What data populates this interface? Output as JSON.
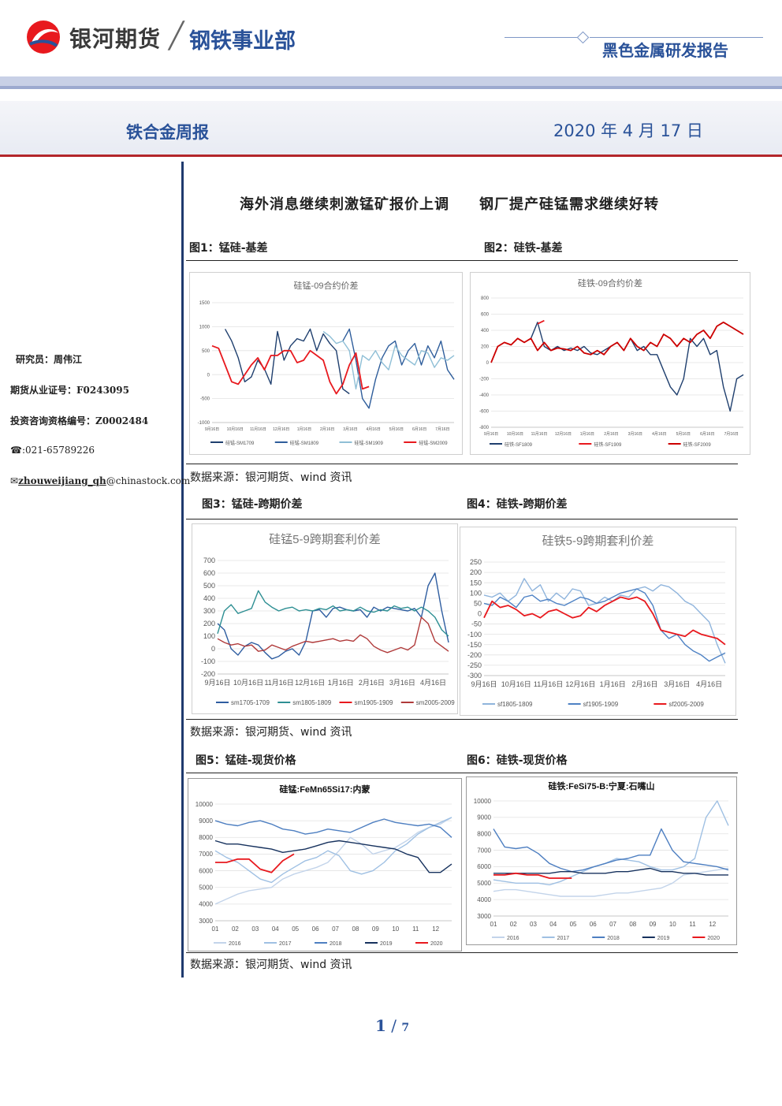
{
  "header": {
    "company": "银河期货",
    "division": "钢铁事业部",
    "report_type": "黑色金属研发报告"
  },
  "title_row": {
    "report_name": "铁合金周报",
    "date": "2020 年 4 月 17 日"
  },
  "sidebar": {
    "researcher": "研究员：周伟江",
    "futures_cert": "期货从业证号：F0243095",
    "advisory_cert": "投资咨询资格编号：Z0002484",
    "phone": "☎:021-65789226",
    "email_prefix": "zhouweijiang_qh",
    "email_domain": "@chinastock.com"
  },
  "headline": "海外消息继续刺激锰矿报价上调　　钢厂提产硅锰需求继续好转",
  "figures": {
    "fig1_label": "图1：锰硅-基差",
    "fig2_label": "图2：硅铁-基差",
    "fig3_label": "图3：锰硅-跨期价差",
    "fig4_label": "图4：硅铁-跨期价差",
    "fig5_label": "图5：锰硅-现货价格",
    "fig6_label": "图6：硅铁-现货价格"
  },
  "source_note": "数据来源：银河期货、wind 资讯",
  "footer": {
    "page": "1",
    "total": "7"
  },
  "chart_data": [
    {
      "type": "line",
      "title": "硅锰-09合约价差",
      "x_ticks": [
        "9月16日",
        "10月16日",
        "11月16日",
        "12月16日",
        "1月16日",
        "2月16日",
        "3月16日",
        "4月16日",
        "5月16日",
        "6月16日",
        "7月16日"
      ],
      "ylim": [
        -1000,
        1500
      ],
      "y_ticks": [
        "1500",
        "1000",
        "500",
        "0",
        "-500",
        "-1000"
      ],
      "series": [
        {
          "name": "硅锰-SM1709",
          "color": "#1f3f6e",
          "values": [
            null,
            null,
            950,
            700,
            350,
            -150,
            -50,
            300,
            120,
            -200,
            900,
            300,
            600,
            750,
            700,
            950,
            500,
            850,
            650,
            500,
            -300,
            -400,
            null,
            null,
            null,
            null,
            null,
            null,
            null,
            null,
            null,
            null,
            null,
            null,
            null,
            null,
            null,
            null
          ]
        },
        {
          "name": "硅锰-SM1809",
          "color": "#2e5d9b",
          "values": [
            null,
            null,
            null,
            null,
            null,
            null,
            null,
            null,
            null,
            null,
            null,
            null,
            null,
            null,
            null,
            null,
            null,
            null,
            null,
            null,
            700,
            950,
            300,
            -500,
            -700,
            -100,
            350,
            600,
            700,
            200,
            500,
            650,
            200,
            600,
            350,
            700,
            100,
            -100
          ]
        },
        {
          "name": "硅锰-SM1909",
          "color": "#8fbfd6",
          "values": [
            null,
            null,
            null,
            null,
            null,
            null,
            null,
            null,
            null,
            null,
            null,
            null,
            null,
            null,
            null,
            null,
            null,
            900,
            800,
            650,
            700,
            500,
            -300,
            400,
            300,
            500,
            250,
            100,
            600,
            400,
            300,
            200,
            500,
            450,
            150,
            350,
            300,
            400
          ]
        },
        {
          "name": "硅锰-SM2009",
          "color": "#e8191e",
          "values": [
            600,
            550,
            200,
            -150,
            -200,
            0,
            200,
            350,
            100,
            400,
            400,
            500,
            500,
            250,
            300,
            500,
            400,
            300,
            -150,
            -400,
            -200,
            200,
            450,
            -300,
            -250,
            null,
            null,
            null,
            null,
            null,
            null,
            null,
            null,
            null,
            null,
            null,
            null,
            null
          ]
        }
      ]
    },
    {
      "type": "line",
      "title": "硅铁-09合约价差",
      "x_ticks": [
        "9月16日",
        "10月16日",
        "11月16日",
        "12月16日",
        "1月16日",
        "2月16日",
        "3月16日",
        "4月16日",
        "5月16日",
        "6月16日",
        "7月16日"
      ],
      "ylim": [
        -800,
        800
      ],
      "y_ticks": [
        "800",
        "600",
        "400",
        "200",
        "0",
        "-200",
        "-400",
        "-600",
        "-800"
      ],
      "series": [
        {
          "name": "硅铁-SF1809",
          "color": "#1f3f6e",
          "values": [
            null,
            null,
            null,
            null,
            null,
            null,
            300,
            500,
            200,
            150,
            200,
            150,
            180,
            150,
            200,
            120,
            100,
            150,
            200,
            250,
            150,
            300,
            150,
            200,
            100,
            100,
            -100,
            -300,
            -400,
            -200,
            300,
            200,
            300,
            100,
            150,
            -300,
            -600,
            -200,
            -150
          ]
        },
        {
          "name": "硅铁-SF1909",
          "color": "#e8191e",
          "values": [
            null,
            null,
            null,
            null,
            null,
            null,
            null,
            480,
            520,
            null,
            null,
            null,
            null,
            null,
            null,
            null,
            null,
            null,
            null,
            null,
            null,
            null,
            null,
            null,
            null,
            null,
            null,
            null,
            null,
            null,
            null,
            null,
            null,
            null,
            null,
            null,
            null,
            null,
            null
          ]
        },
        {
          "name": "硅铁-SF2009",
          "color": "#cc0000",
          "values": [
            0,
            200,
            250,
            220,
            300,
            250,
            300,
            150,
            250,
            150,
            180,
            170,
            150,
            200,
            120,
            100,
            150,
            100,
            200,
            250,
            150,
            300,
            200,
            150,
            250,
            200,
            350,
            300,
            200,
            300,
            250,
            350,
            400,
            300,
            450,
            500,
            450,
            400,
            350
          ]
        }
      ]
    },
    {
      "type": "line",
      "title": "硅锰5-9跨期套利价差",
      "x_ticks": [
        "9月16日",
        "10月16日",
        "11月16日",
        "12月16日",
        "1月16日",
        "2月16日",
        "3月16日",
        "4月16日"
      ],
      "ylim": [
        -200,
        700
      ],
      "y_ticks": [
        "700",
        "600",
        "500",
        "400",
        "300",
        "200",
        "100",
        "0",
        "-100",
        "-200"
      ],
      "series": [
        {
          "name": "sm1705-1709",
          "color": "#2e5da0",
          "values": [
            200,
            150,
            0,
            -50,
            20,
            50,
            30,
            -30,
            -80,
            -60,
            -20,
            0,
            -50,
            60,
            300,
            310,
            250,
            320,
            330,
            310,
            300,
            310,
            250,
            330,
            300,
            330,
            320,
            310,
            300,
            320,
            250,
            500,
            600,
            300,
            50
          ]
        },
        {
          "name": "sm1805-1809",
          "color": "#2e8f93",
          "values": [
            120,
            300,
            350,
            280,
            300,
            320,
            460,
            370,
            330,
            300,
            320,
            330,
            300,
            310,
            300,
            320,
            310,
            340,
            300,
            310,
            300,
            330,
            300,
            290,
            310,
            300,
            340,
            320,
            330,
            300,
            330,
            300,
            250,
            150,
            100
          ]
        },
        {
          "name": "sm1905-1909",
          "color": "#e8191e",
          "values": [
            null,
            null,
            null,
            null,
            null,
            null,
            null,
            null,
            null,
            null,
            null,
            null,
            null,
            null,
            null,
            null,
            null,
            null,
            null,
            null,
            null,
            null,
            null,
            null,
            null,
            null,
            null,
            null,
            null,
            null,
            null,
            null,
            null,
            null,
            null
          ]
        },
        {
          "name": "sm2005-2009",
          "color": "#b03a3a",
          "values": [
            80,
            50,
            30,
            40,
            20,
            30,
            -20,
            -10,
            30,
            10,
            -10,
            20,
            40,
            60,
            50,
            60,
            70,
            80,
            60,
            70,
            60,
            110,
            80,
            20,
            -10,
            -30,
            -10,
            10,
            -10,
            30,
            250,
            200,
            60,
            20,
            -20
          ]
        }
      ]
    },
    {
      "type": "line",
      "title": "硅铁5-9跨期套利价差",
      "x_ticks": [
        "9月16日",
        "10月16日",
        "11月16日",
        "12月16日",
        "1月16日",
        "2月16日",
        "3月16日",
        "4月16日"
      ],
      "ylim": [
        -300,
        250
      ],
      "y_ticks": [
        "250",
        "200",
        "150",
        "100",
        "50",
        "0",
        "-50",
        "-100",
        "-150",
        "-200",
        "-250",
        "-300"
      ],
      "series": [
        {
          "name": "sf1805-1809",
          "color": "#8fb4dc",
          "values": [
            90,
            80,
            100,
            60,
            90,
            170,
            110,
            140,
            60,
            100,
            70,
            120,
            110,
            40,
            50,
            80,
            60,
            90,
            80,
            120,
            130,
            110,
            140,
            130,
            100,
            60,
            40,
            0,
            -40,
            -150,
            -240
          ]
        },
        {
          "name": "sf1905-1909",
          "color": "#4e82c4",
          "values": [
            50,
            40,
            80,
            60,
            30,
            80,
            90,
            60,
            70,
            50,
            40,
            60,
            80,
            70,
            50,
            60,
            80,
            100,
            110,
            120,
            100,
            40,
            -80,
            -120,
            -100,
            -150,
            -180,
            -200,
            -230,
            -210,
            -190
          ]
        },
        {
          "name": "sf2005-2009",
          "color": "#e8191e",
          "values": [
            -20,
            60,
            30,
            40,
            20,
            -10,
            0,
            -20,
            10,
            20,
            0,
            -20,
            -10,
            30,
            10,
            40,
            60,
            80,
            70,
            80,
            60,
            0,
            -80,
            -90,
            -100,
            -110,
            -80,
            -100,
            -110,
            -120,
            -150
          ]
        }
      ]
    },
    {
      "type": "line",
      "title": "硅锰:FeMn65Si17:内蒙",
      "x_ticks": [
        "01",
        "02",
        "03",
        "04",
        "05",
        "06",
        "07",
        "08",
        "09",
        "10",
        "11",
        "12"
      ],
      "ylim": [
        3000,
        10000
      ],
      "y_ticks": [
        "10000",
        "9000",
        "8000",
        "7000",
        "6000",
        "5000",
        "4000",
        "3000"
      ],
      "series": [
        {
          "name": "2016",
          "color": "#c3d4ea",
          "values": [
            4000,
            4300,
            4600,
            4800,
            4900,
            5000,
            5500,
            5800,
            6000,
            6200,
            6500,
            7200,
            8000,
            7600,
            7000,
            7200,
            7400,
            7800,
            8300,
            8600,
            8800,
            9200
          ]
        },
        {
          "name": "2017",
          "color": "#9fc0e3",
          "values": [
            7200,
            6800,
            6500,
            6000,
            5500,
            5300,
            5800,
            6200,
            6600,
            6800,
            7200,
            6900,
            6000,
            5800,
            6000,
            6500,
            7200,
            7600,
            8200,
            8600,
            8900,
            9200
          ]
        },
        {
          "name": "2018",
          "color": "#4e7fc1",
          "values": [
            9000,
            8800,
            8700,
            8900,
            9000,
            8800,
            8500,
            8400,
            8200,
            8300,
            8500,
            8400,
            8300,
            8600,
            8900,
            9100,
            8900,
            8800,
            8700,
            8800,
            8600,
            8000
          ]
        },
        {
          "name": "2019",
          "color": "#17325e",
          "values": [
            7800,
            7600,
            7600,
            7500,
            7400,
            7300,
            7100,
            7200,
            7300,
            7500,
            7700,
            7800,
            7700,
            7600,
            7500,
            7400,
            7300,
            7000,
            6800,
            5900,
            5900,
            6400
          ]
        },
        {
          "name": "2020",
          "color": "#e8191e",
          "values": [
            6500,
            6500,
            6700,
            6700,
            6100,
            5900,
            6600,
            7000,
            null,
            null,
            null,
            null,
            null,
            null,
            null,
            null,
            null,
            null,
            null,
            null,
            null,
            null
          ]
        }
      ]
    },
    {
      "type": "line",
      "title": "硅铁:FeSi75-B:宁夏:石嘴山",
      "x_ticks": [
        "01",
        "02",
        "03",
        "04",
        "05",
        "06",
        "07",
        "08",
        "09",
        "10",
        "11",
        "12"
      ],
      "ylim": [
        3000,
        10000
      ],
      "y_ticks": [
        "10000",
        "9000",
        "8000",
        "7000",
        "6000",
        "5000",
        "4000",
        "3000"
      ],
      "series": [
        {
          "name": "2016",
          "color": "#c3d4ea",
          "values": [
            4500,
            4600,
            4600,
            4500,
            4400,
            4300,
            4200,
            4200,
            4200,
            4200,
            4300,
            4400,
            4400,
            4500,
            4600,
            4700,
            5000,
            5500,
            5600,
            5700,
            5800,
            5900
          ]
        },
        {
          "name": "2017",
          "color": "#9fc0e3",
          "values": [
            5200,
            5100,
            5000,
            5000,
            5000,
            4900,
            5100,
            5400,
            5700,
            6000,
            6200,
            6500,
            6400,
            6300,
            6000,
            5800,
            5800,
            6000,
            6500,
            9000,
            10000,
            8500
          ]
        },
        {
          "name": "2018",
          "color": "#4e7fc1",
          "values": [
            8300,
            7200,
            7100,
            7200,
            6800,
            6200,
            5900,
            5700,
            5800,
            6000,
            6200,
            6400,
            6500,
            6700,
            6700,
            8300,
            7000,
            6300,
            6200,
            6100,
            6000,
            5800
          ]
        },
        {
          "name": "2019",
          "color": "#17325e",
          "values": [
            5600,
            5600,
            5600,
            5600,
            5600,
            5600,
            5700,
            5700,
            5600,
            5600,
            5600,
            5700,
            5700,
            5800,
            5900,
            5700,
            5700,
            5600,
            5600,
            5500,
            5500,
            5500
          ]
        },
        {
          "name": "2020",
          "color": "#e8191e",
          "values": [
            5500,
            5500,
            5600,
            5500,
            5500,
            5300,
            5300,
            5300,
            null,
            null,
            null,
            null,
            null,
            null,
            null,
            null,
            null,
            null,
            null,
            null,
            null,
            null
          ]
        }
      ]
    }
  ]
}
